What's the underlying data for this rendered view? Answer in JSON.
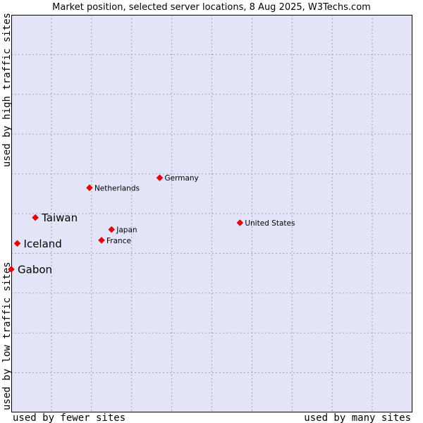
{
  "chart_data": {
    "type": "scatter",
    "title": "Market position, selected server locations, 8 Aug 2025, W3Techs.com",
    "xlabel_low": "used by fewer sites",
    "xlabel_high": "used by many sites",
    "ylabel_low": "used by low traffic sites",
    "ylabel_high": "used by high traffic sites",
    "xlim": [
      0,
      10
    ],
    "ylim": [
      0,
      10
    ],
    "grid": true,
    "marker_color": "#ee0000",
    "plot_background": "#e4e4f8",
    "points": [
      {
        "name": "Germany",
        "x": 3.7,
        "y": 5.9,
        "highlight": false
      },
      {
        "name": "Netherlands",
        "x": 1.95,
        "y": 5.65,
        "highlight": false
      },
      {
        "name": "Taiwan",
        "x": 0.6,
        "y": 4.9,
        "highlight": true
      },
      {
        "name": "United States",
        "x": 5.7,
        "y": 4.77,
        "highlight": false
      },
      {
        "name": "Japan",
        "x": 2.5,
        "y": 4.6,
        "highlight": false
      },
      {
        "name": "Iceland",
        "x": 0.15,
        "y": 4.25,
        "highlight": true
      },
      {
        "name": "France",
        "x": 2.25,
        "y": 4.33,
        "highlight": false
      },
      {
        "name": "Gabon",
        "x": 0.0,
        "y": 3.6,
        "highlight": true
      }
    ]
  }
}
